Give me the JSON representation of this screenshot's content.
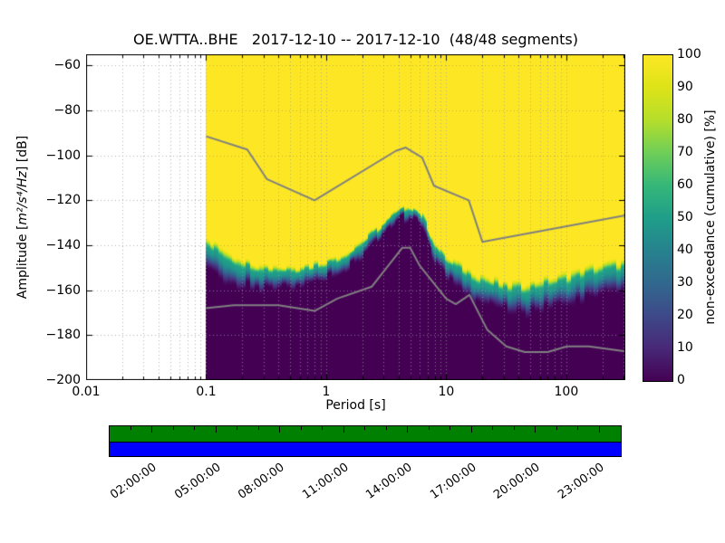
{
  "chart_data": {
    "type": "heatmap",
    "title": "OE.WTTA..BHE   2017-12-10 -- 2017-12-10  (48/48 segments)",
    "station_id": "OE.WTTA..BHE",
    "date_start": "2017-12-10",
    "date_end": "2017-12-10",
    "segments_used": 48,
    "segments_total": 48,
    "xlabel": "Period [s]",
    "ylabel_prefix": "Amplitude [",
    "ylabel_math": "m²/s⁴/Hz",
    "ylabel_suffix": "] [dB]",
    "x_scale": "log",
    "xlim": [
      0.01,
      310
    ],
    "ylim": [
      -200,
      -55
    ],
    "grid": true,
    "x_tick_values": [
      0.01,
      0.1,
      1,
      10,
      100
    ],
    "x_tick_labels": [
      "0.01",
      "0.1",
      "1",
      "10",
      "100"
    ],
    "y_tick_values": [
      -60,
      -80,
      -100,
      -120,
      -140,
      -160,
      -180,
      -200
    ],
    "y_tick_labels": [
      "−60",
      "−80",
      "−100",
      "−120",
      "−140",
      "−160",
      "−180",
      "−200"
    ],
    "data_period_min": 0.1,
    "colormap": {
      "name": "viridis",
      "stops": [
        [
          0.0,
          "#440154"
        ],
        [
          0.1,
          "#482878"
        ],
        [
          0.2,
          "#3e4989"
        ],
        [
          0.3,
          "#31688e"
        ],
        [
          0.4,
          "#26828e"
        ],
        [
          0.5,
          "#1f9e89"
        ],
        [
          0.6,
          "#35b779"
        ],
        [
          0.7,
          "#6ece58"
        ],
        [
          0.8,
          "#b5de2b"
        ],
        [
          0.9,
          "#dde318"
        ],
        [
          1.0,
          "#fde725"
        ]
      ]
    },
    "colorbar": {
      "label": "non-exceedance (cumulative) [%]",
      "range": [
        0,
        100
      ],
      "tick_values": [
        0,
        10,
        20,
        30,
        40,
        50,
        60,
        70,
        80,
        90,
        100
      ]
    },
    "ppsd_transition": {
      "columns": [
        "period_s",
        "mode_db",
        "halfwidth_db"
      ],
      "points": [
        [
          0.1,
          -141,
          6
        ],
        [
          0.13,
          -145,
          6
        ],
        [
          0.18,
          -149,
          5.5
        ],
        [
          0.25,
          -151,
          5
        ],
        [
          0.35,
          -152,
          4.5
        ],
        [
          0.5,
          -152,
          4
        ],
        [
          0.7,
          -151,
          3.5
        ],
        [
          1.0,
          -149,
          3.5
        ],
        [
          1.4,
          -146,
          3
        ],
        [
          2.0,
          -140,
          3
        ],
        [
          2.8,
          -133,
          3
        ],
        [
          4.0,
          -126,
          2.5
        ],
        [
          5.0,
          -123.5,
          2.5
        ],
        [
          6.0,
          -126,
          2.5
        ],
        [
          7.0,
          -133,
          3
        ],
        [
          8.0,
          -141,
          3.5
        ],
        [
          10.0,
          -148,
          4
        ],
        [
          13.0,
          -152,
          4.5
        ],
        [
          16.0,
          -155,
          5
        ],
        [
          20.0,
          -157,
          5
        ],
        [
          25.0,
          -159,
          5.5
        ],
        [
          32.0,
          -161,
          6
        ],
        [
          45.0,
          -161,
          6
        ],
        [
          65.0,
          -159,
          6
        ],
        [
          100.0,
          -157,
          6
        ],
        [
          150.0,
          -154,
          6
        ],
        [
          220.0,
          -152,
          6
        ],
        [
          310.0,
          -151,
          6
        ]
      ]
    },
    "noise_models": {
      "color": "#808080",
      "high_noise_model": [
        [
          0.1,
          -91.5
        ],
        [
          0.22,
          -97.4
        ],
        [
          0.32,
          -110.5
        ],
        [
          0.8,
          -120.0
        ],
        [
          3.8,
          -98.0
        ],
        [
          4.6,
          -96.5
        ],
        [
          6.3,
          -101.0
        ],
        [
          7.9,
          -113.5
        ],
        [
          15.4,
          -120.0
        ],
        [
          20.0,
          -138.5
        ],
        [
          310.0,
          -126.7
        ]
      ],
      "low_noise_model": [
        [
          0.1,
          -168.0
        ],
        [
          0.17,
          -166.7
        ],
        [
          0.4,
          -166.7
        ],
        [
          0.8,
          -169.2
        ],
        [
          1.24,
          -163.7
        ],
        [
          2.4,
          -158.4
        ],
        [
          4.3,
          -141.1
        ],
        [
          5.0,
          -141.1
        ],
        [
          6.0,
          -149.0
        ],
        [
          10.0,
          -163.8
        ],
        [
          12.0,
          -166.2
        ],
        [
          15.6,
          -162.1
        ],
        [
          21.9,
          -177.5
        ],
        [
          31.6,
          -185.0
        ],
        [
          45.0,
          -187.5
        ],
        [
          70.0,
          -187.5
        ],
        [
          101.0,
          -185.0
        ],
        [
          154.0,
          -185.0
        ],
        [
          310.0,
          -187.2
        ]
      ]
    },
    "timebar": {
      "coverage_color": "#008000",
      "extent_color": "#0000ff",
      "start_hour": 0,
      "end_hour": 24,
      "tick_hours": [
        2,
        5,
        8,
        11,
        14,
        17,
        20,
        23
      ],
      "tick_labels": [
        "02:00:00",
        "05:00:00",
        "08:00:00",
        "11:00:00",
        "14:00:00",
        "17:00:00",
        "20:00:00",
        "23:00:00"
      ]
    }
  }
}
